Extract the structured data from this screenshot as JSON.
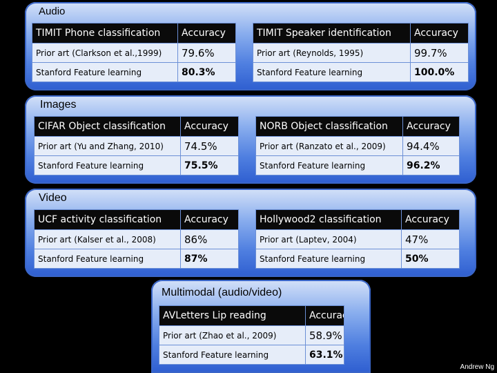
{
  "sections": {
    "audio": {
      "title": "Audio",
      "left": {
        "header": "TIMIT Phone classification",
        "metric": "Accuracy",
        "rows": [
          {
            "method": "Prior art (Clarkson et al.,1999)",
            "value": "79.6%"
          },
          {
            "method": "Stanford Feature learning",
            "value": "80.3%"
          }
        ]
      },
      "right": {
        "header": "TIMIT Speaker identification",
        "metric": "Accuracy",
        "rows": [
          {
            "method": "Prior art (Reynolds, 1995)",
            "value": "99.7%"
          },
          {
            "method": "Stanford Feature learning",
            "value": "100.0%"
          }
        ]
      }
    },
    "images": {
      "title": "Images",
      "left": {
        "header": "CIFAR Object classification",
        "metric": "Accuracy",
        "rows": [
          {
            "method": "Prior art (Yu and Zhang, 2010)",
            "value": "74.5%"
          },
          {
            "method": "Stanford Feature learning",
            "value": "75.5%"
          }
        ]
      },
      "right": {
        "header": "NORB Object classification",
        "metric": "Accuracy",
        "rows": [
          {
            "method": "Prior art (Ranzato et al., 2009)",
            "value": "94.4%"
          },
          {
            "method": "Stanford Feature learning",
            "value": "96.2%"
          }
        ]
      }
    },
    "video": {
      "title": "Video",
      "left": {
        "header": "UCF activity classification",
        "metric": "Accuracy",
        "rows": [
          {
            "method": "Prior art (Kalser et al., 2008)",
            "value": "86%"
          },
          {
            "method": "Stanford Feature learning",
            "value": "87%"
          }
        ]
      },
      "right": {
        "header": "Hollywood2 classification",
        "metric": "Accuracy",
        "rows": [
          {
            "method": "Prior art (Laptev, 2004)",
            "value": "47%"
          },
          {
            "method": "Stanford Feature learning",
            "value": "50%"
          }
        ]
      }
    },
    "multimodal": {
      "title": "Multimodal (audio/video)",
      "table": {
        "header": "AVLetters Lip reading",
        "metric": "Accuracy",
        "rows": [
          {
            "method": "Prior art (Zhao et al., 2009)",
            "value": "58.9%"
          },
          {
            "method": "Stanford Feature learning",
            "value": "63.1%"
          }
        ]
      }
    }
  },
  "credit": "Andrew Ng",
  "colors": {
    "background": "#000000",
    "panel_blue": "#4f7fe0",
    "header_row": "#0a0a0a",
    "body_row": "#e6edf9"
  }
}
